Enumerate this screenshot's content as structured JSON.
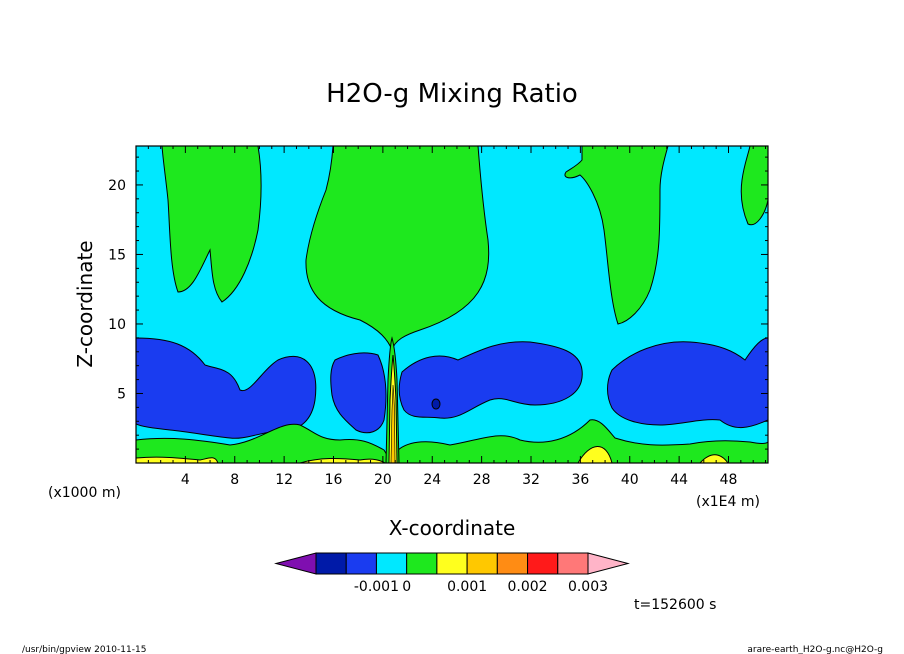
{
  "chart_data": {
    "type": "contour",
    "title": "H2O-g Mixing Ratio",
    "xlabel": "X-coordinate",
    "ylabel": "Z-coordinate",
    "x_unit_left": "(x1000 m)",
    "x_unit_right": "(x1E4 m)",
    "x_ticks": [
      4,
      8,
      12,
      16,
      20,
      24,
      28,
      32,
      36,
      40,
      44,
      48
    ],
    "y_ticks": [
      5,
      10,
      15,
      20
    ],
    "xlim": [
      0,
      51.2
    ],
    "ylim": [
      0,
      22.8
    ],
    "time_label": "t=152600 s",
    "colorbar": {
      "tick_labels": [
        "-0.001",
        "0",
        "0.001",
        "0.002",
        "0.003"
      ],
      "colors": [
        "#7f0fb0",
        "#001aa8",
        "#1a3cf0",
        "#00e8ff",
        "#1ee81e",
        "#ffff1e",
        "#ffc800",
        "#ff8c14",
        "#ff1a1a",
        "#ff7878",
        "#ffb4c8"
      ]
    }
  },
  "footer": {
    "left": "/usr/bin/gpview  2010-11-15",
    "right": "arare-earth_H2O-g.nc@H2O-g"
  }
}
